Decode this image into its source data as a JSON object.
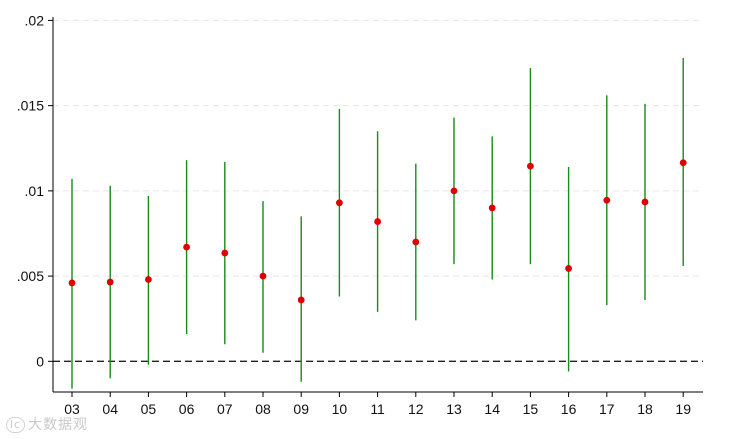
{
  "chart_data": {
    "type": "scatter",
    "subtype": "coefficient plot with confidence intervals",
    "title": "",
    "xlabel": "",
    "ylabel": "",
    "categories": [
      "03",
      "04",
      "05",
      "06",
      "07",
      "08",
      "09",
      "10",
      "11",
      "12",
      "13",
      "14",
      "15",
      "16",
      "17",
      "18",
      "19"
    ],
    "series": [
      {
        "estimate": [
          0.0046,
          0.00465,
          0.0048,
          0.0067,
          0.00635,
          0.005,
          0.0036,
          0.0093,
          0.0082,
          0.007,
          0.01,
          0.009,
          0.01145,
          0.00545,
          0.00945,
          0.00935,
          0.01165
        ],
        "ci_low": [
          -0.0016,
          -0.001,
          -0.0002,
          0.0016,
          0.001,
          0.0005,
          -0.0012,
          0.0038,
          0.0029,
          0.0024,
          0.0057,
          0.0048,
          0.0057,
          -0.0006,
          0.0033,
          0.0036,
          0.0056
        ],
        "ci_high": [
          0.0107,
          0.0103,
          0.0097,
          0.0118,
          0.0117,
          0.0094,
          0.0085,
          0.0148,
          0.0135,
          0.0116,
          0.0143,
          0.0132,
          0.0172,
          0.0114,
          0.0156,
          0.0151,
          0.0178
        ]
      }
    ],
    "y_ticks": [
      0,
      0.005,
      0.01,
      0.015,
      0.02
    ],
    "y_tick_labels": [
      "0",
      ".005",
      ".01",
      ".015",
      ".02"
    ],
    "ylim": [
      -0.0018,
      0.0202
    ],
    "reference_line": 0,
    "grid": "horizontal dashed",
    "colors": {
      "estimate": "#e00000",
      "interval": "#1a8a1a",
      "grid": "#e6e6e6",
      "reference": "#222222",
      "axis": "#000000"
    }
  },
  "watermark": {
    "logo": "lc",
    "text": "大数据观"
  }
}
